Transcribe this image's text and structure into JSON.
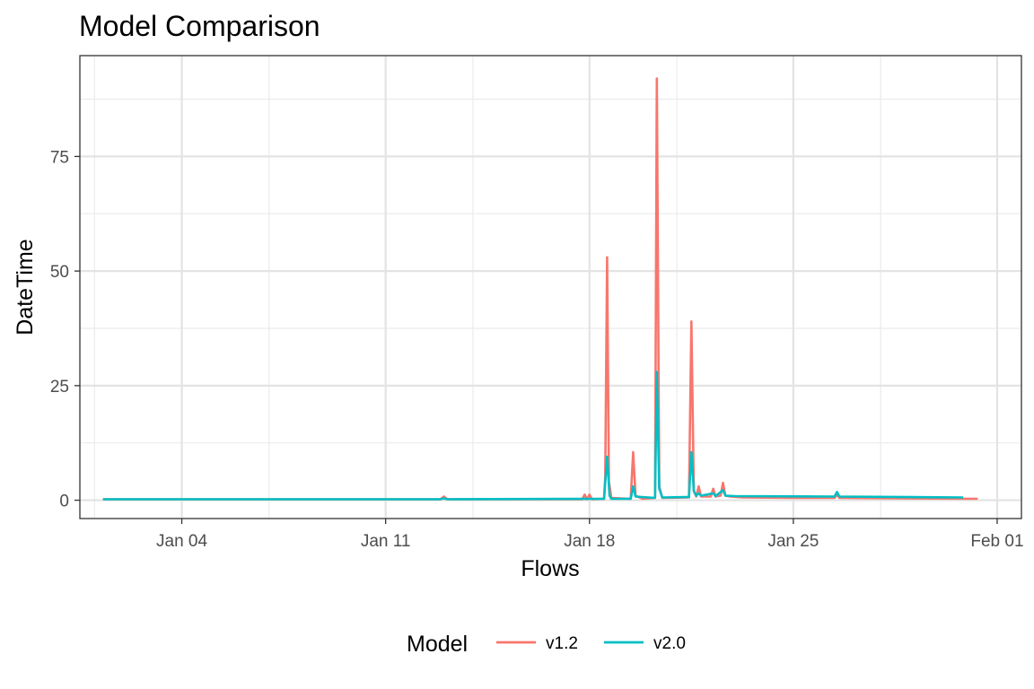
{
  "chart_data": {
    "type": "line",
    "title": "Model Comparison",
    "xlabel": "Flows",
    "ylabel": "DateTime",
    "xlim": [
      "2024-01-01",
      "2024-02-01"
    ],
    "ylim": [
      -4,
      97
    ],
    "x_ticks": [
      {
        "date": "2024-01-04",
        "label": "Jan 04"
      },
      {
        "date": "2024-01-11",
        "label": "Jan 11"
      },
      {
        "date": "2024-01-18",
        "label": "Jan 18"
      },
      {
        "date": "2024-01-25",
        "label": "Jan 25"
      },
      {
        "date": "2024-02-01",
        "label": "Feb 01"
      }
    ],
    "x_minor_ticks": [
      "2024-01-01",
      "2024-01-07",
      "2024-01-14",
      "2024-01-21",
      "2024-01-28"
    ],
    "y_ticks": [
      {
        "value": 0,
        "label": "0"
      },
      {
        "value": 25,
        "label": "25"
      },
      {
        "value": 50,
        "label": "50"
      },
      {
        "value": 75,
        "label": "75"
      }
    ],
    "y_minor_ticks": [
      12.5,
      37.5,
      62.5,
      87.5
    ],
    "grid": true,
    "legend": {
      "title": "Model",
      "position": "bottom"
    },
    "series": [
      {
        "name": "v1.2",
        "color": "#F8766D",
        "points": [
          [
            "2024-01-01 07:00",
            0.2
          ],
          [
            "2024-01-12 00:00",
            0.2
          ],
          [
            "2024-01-12 21:00",
            0.2
          ],
          [
            "2024-01-13 00:00",
            0.8
          ],
          [
            "2024-01-13 03:00",
            0.2
          ],
          [
            "2024-01-17 18:00",
            0.2
          ],
          [
            "2024-01-17 20:00",
            1.2
          ],
          [
            "2024-01-17 22:00",
            0.2
          ],
          [
            "2024-01-18 00:00",
            1.2
          ],
          [
            "2024-01-18 02:00",
            0.2
          ],
          [
            "2024-01-18 12:00",
            0.3
          ],
          [
            "2024-01-18 13:00",
            5.0
          ],
          [
            "2024-01-18 14:30",
            53.0
          ],
          [
            "2024-01-18 16:00",
            4.0
          ],
          [
            "2024-01-18 18:00",
            0.5
          ],
          [
            "2024-01-19 10:00",
            0.3
          ],
          [
            "2024-01-19 12:00",
            10.5
          ],
          [
            "2024-01-19 14:00",
            1.0
          ],
          [
            "2024-01-19 20:00",
            0.3
          ],
          [
            "2024-01-20 06:00",
            0.5
          ],
          [
            "2024-01-20 07:30",
            92.0
          ],
          [
            "2024-01-20 09:30",
            3.0
          ],
          [
            "2024-01-20 12:00",
            0.5
          ],
          [
            "2024-01-21 10:00",
            0.6
          ],
          [
            "2024-01-21 12:00",
            39.0
          ],
          [
            "2024-01-21 14:00",
            2.0
          ],
          [
            "2024-01-21 16:00",
            0.8
          ],
          [
            "2024-01-21 18:00",
            3.0
          ],
          [
            "2024-01-21 20:00",
            0.8
          ],
          [
            "2024-01-22 04:00",
            0.8
          ],
          [
            "2024-01-22 06:00",
            2.5
          ],
          [
            "2024-01-22 08:00",
            0.8
          ],
          [
            "2024-01-22 12:00",
            1.0
          ],
          [
            "2024-01-22 14:00",
            3.8
          ],
          [
            "2024-01-22 16:00",
            1.0
          ],
          [
            "2024-01-22 20:00",
            0.8
          ],
          [
            "2024-01-23 06:00",
            0.6
          ],
          [
            "2024-01-25 00:00",
            0.5
          ],
          [
            "2024-01-26 10:00",
            0.5
          ],
          [
            "2024-01-26 12:00",
            1.2
          ],
          [
            "2024-01-26 14:00",
            0.5
          ],
          [
            "2024-01-31 08:00",
            0.3
          ]
        ]
      },
      {
        "name": "v2.0",
        "color": "#00BFC4",
        "points": [
          [
            "2024-01-01 07:00",
            0.2
          ],
          [
            "2024-01-12 21:00",
            0.2
          ],
          [
            "2024-01-13 00:00",
            0.4
          ],
          [
            "2024-01-13 03:00",
            0.2
          ],
          [
            "2024-01-18 12:00",
            0.3
          ],
          [
            "2024-01-18 14:30",
            9.5
          ],
          [
            "2024-01-18 16:30",
            1.0
          ],
          [
            "2024-01-18 18:00",
            0.3
          ],
          [
            "2024-01-19 10:00",
            0.3
          ],
          [
            "2024-01-19 12:00",
            3.0
          ],
          [
            "2024-01-19 14:00",
            0.8
          ],
          [
            "2024-01-20 06:00",
            0.5
          ],
          [
            "2024-01-20 07:30",
            28.0
          ],
          [
            "2024-01-20 09:30",
            2.5
          ],
          [
            "2024-01-20 12:00",
            0.6
          ],
          [
            "2024-01-21 10:00",
            0.7
          ],
          [
            "2024-01-21 12:00",
            10.5
          ],
          [
            "2024-01-21 14:00",
            2.0
          ],
          [
            "2024-01-21 16:00",
            1.0
          ],
          [
            "2024-01-21 18:00",
            1.5
          ],
          [
            "2024-01-21 20:00",
            1.0
          ],
          [
            "2024-01-22 06:00",
            1.5
          ],
          [
            "2024-01-22 08:00",
            0.9
          ],
          [
            "2024-01-22 14:00",
            2.2
          ],
          [
            "2024-01-22 16:00",
            1.0
          ],
          [
            "2024-01-23 00:00",
            0.9
          ],
          [
            "2024-01-26 10:00",
            0.8
          ],
          [
            "2024-01-26 12:00",
            1.8
          ],
          [
            "2024-01-26 14:00",
            0.8
          ],
          [
            "2024-01-30 20:00",
            0.6
          ]
        ]
      }
    ]
  }
}
